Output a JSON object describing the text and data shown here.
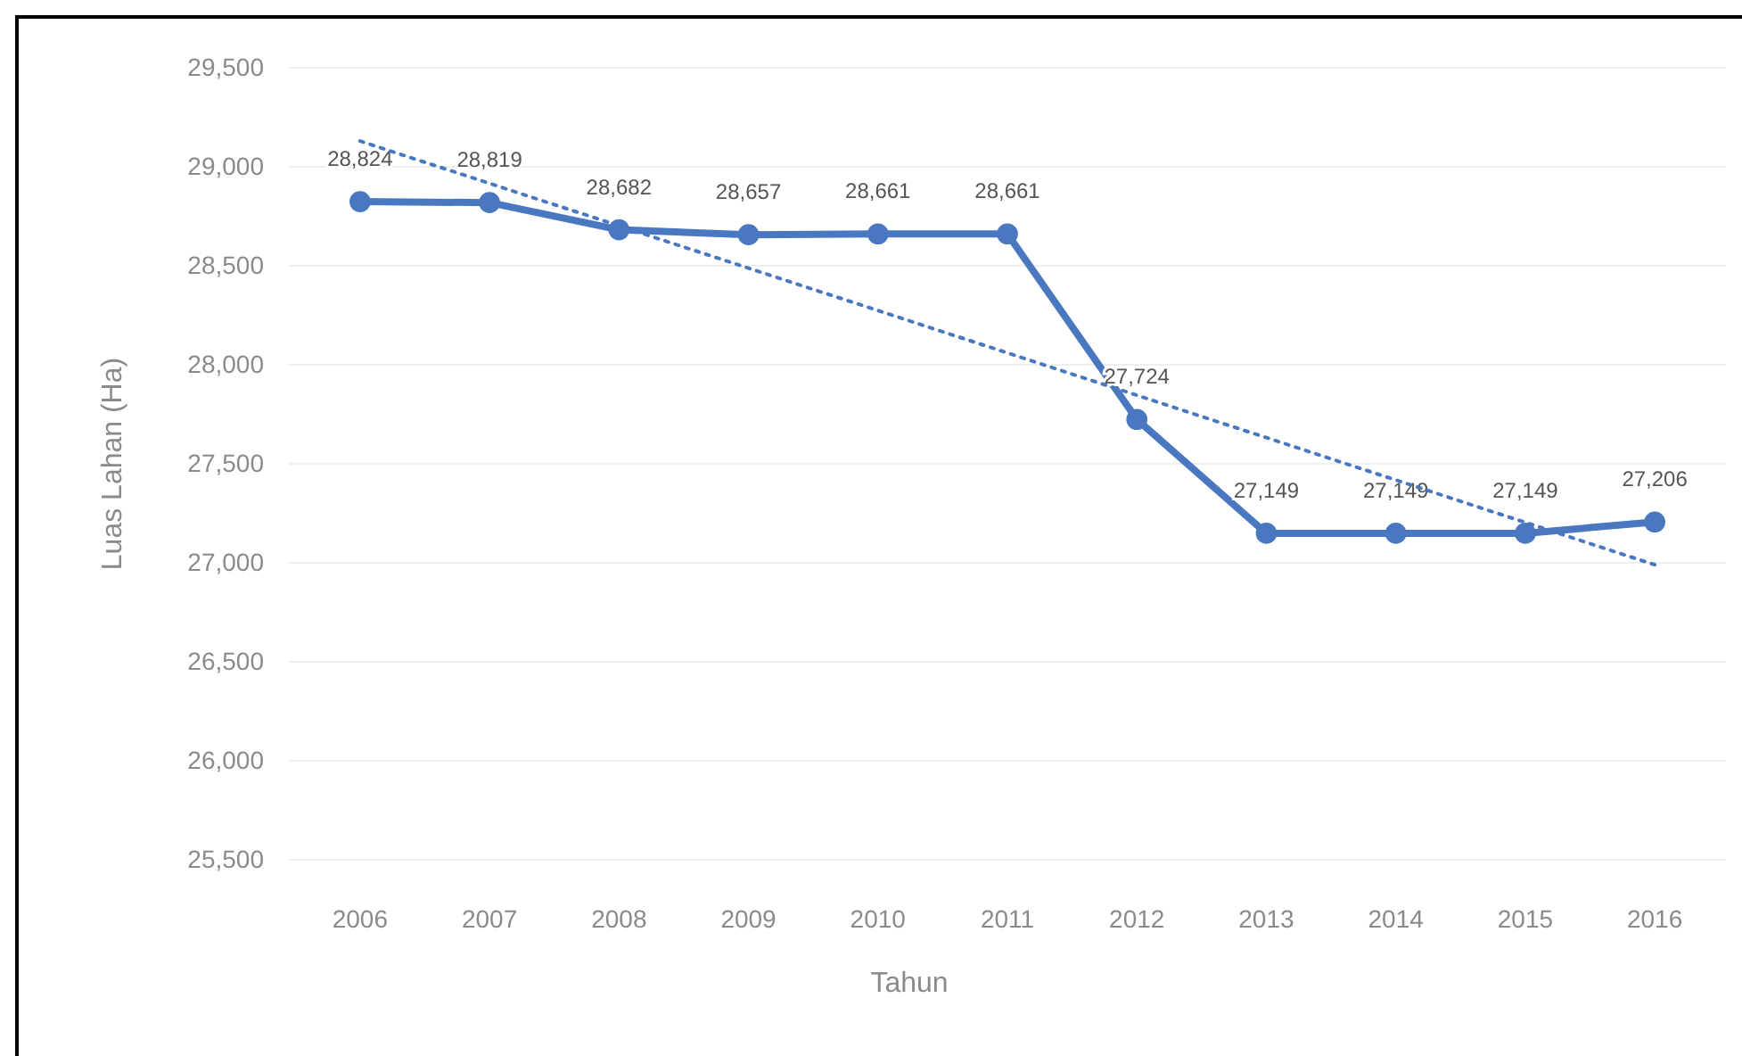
{
  "chart_data": {
    "type": "line",
    "xlabel": "Tahun",
    "ylabel": "Luas Lahan (Ha)",
    "x": [
      2006,
      2007,
      2008,
      2009,
      2010,
      2011,
      2012,
      2013,
      2014,
      2015,
      2016
    ],
    "xlim": [
      2005.45,
      2016.55
    ],
    "xticks": [
      2006,
      2007,
      2008,
      2009,
      2010,
      2011,
      2012,
      2013,
      2014,
      2015,
      2016
    ],
    "ylim": [
      25500,
      29500
    ],
    "yticks": [
      {
        "value": 25500,
        "label": "25,500"
      },
      {
        "value": 26000,
        "label": "26,000"
      },
      {
        "value": 26500,
        "label": "26,500"
      },
      {
        "value": 27000,
        "label": "27,000"
      },
      {
        "value": 27500,
        "label": "27,500"
      },
      {
        "value": 28000,
        "label": "28,000"
      },
      {
        "value": 28500,
        "label": "28,500"
      },
      {
        "value": 29000,
        "label": "29,000"
      },
      {
        "value": 29500,
        "label": "29,500"
      }
    ],
    "grid": "y",
    "series": [
      {
        "color": "#4a78c0",
        "marker": "circle",
        "line_style": "solid",
        "values": [
          28824,
          28819,
          28682,
          28657,
          28661,
          28661,
          27724,
          27149,
          27149,
          27149,
          27206
        ],
        "value_labels": [
          "28,824",
          "28,819",
          "28,682",
          "28,657",
          "28,661",
          "28,661",
          "27,724",
          "27,149",
          "27,149",
          "27,149",
          "27,206"
        ]
      },
      {
        "type": "line",
        "color": "#4a78c0",
        "marker": "none",
        "line_style": "dotted",
        "x": [
          2006,
          2016
        ],
        "values": [
          29130,
          26990
        ]
      }
    ]
  }
}
